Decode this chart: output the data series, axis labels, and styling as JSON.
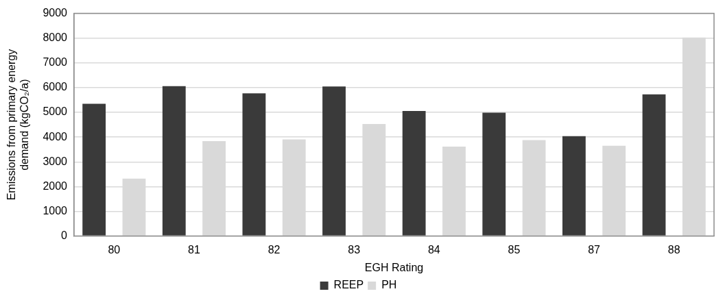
{
  "chart_data": {
    "type": "bar",
    "xlabel": "EGH Rating",
    "ylabel": "Emissions from primary energy demand (kgCO₂/a)",
    "categories": [
      "80",
      "81",
      "82",
      "83",
      "84",
      "85",
      "87",
      "88"
    ],
    "series": [
      {
        "name": "REEP",
        "color": "#3a3a3a",
        "values": [
          5350,
          6060,
          5770,
          6050,
          5060,
          4990,
          4040,
          5730
        ]
      },
      {
        "name": "PH",
        "color": "#d9d9d9",
        "values": [
          2320,
          3840,
          3910,
          4530,
          3620,
          3880,
          3650,
          8030
        ]
      }
    ],
    "ylim": [
      0,
      9000
    ],
    "yticks": [
      0,
      1000,
      2000,
      3000,
      4000,
      5000,
      6000,
      7000,
      8000,
      9000
    ],
    "grid": "y",
    "legend": "bottom"
  }
}
